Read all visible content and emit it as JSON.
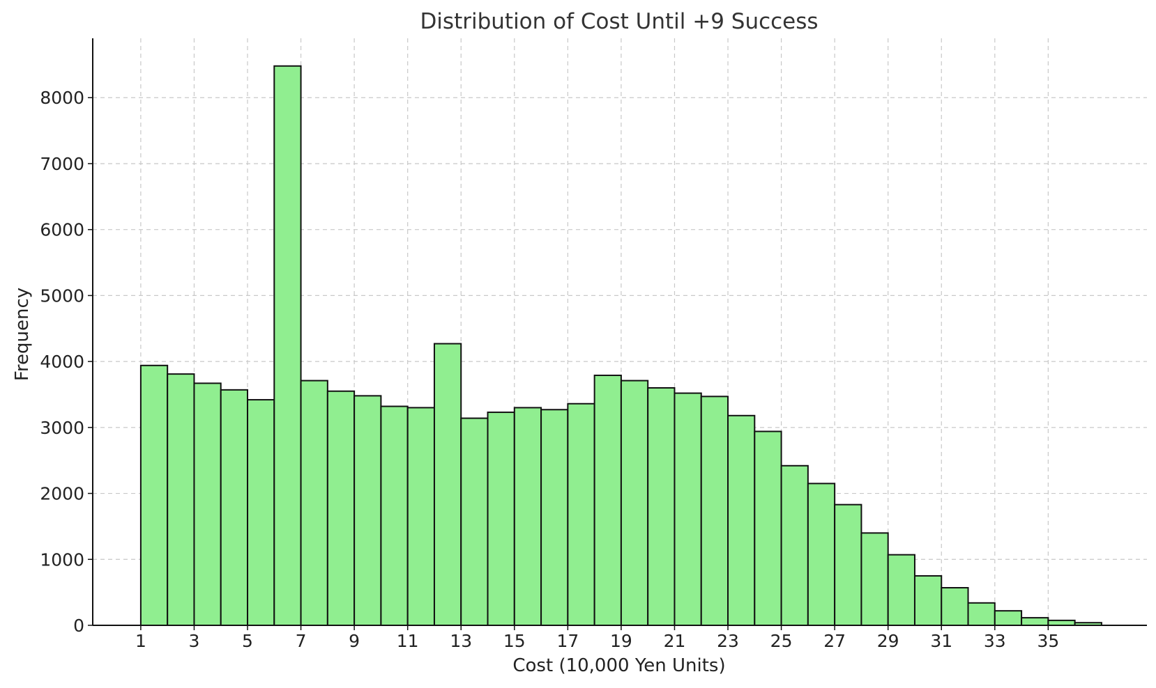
{
  "chart_data": {
    "type": "bar",
    "title": "Distribution of Cost Until +9 Success",
    "xlabel": "Cost (10,000 Yen Units)",
    "ylabel": "Frequency",
    "bin_width": 1,
    "bin_starts": [
      1,
      2,
      3,
      4,
      5,
      6,
      7,
      8,
      9,
      10,
      11,
      12,
      13,
      14,
      15,
      16,
      17,
      18,
      19,
      20,
      21,
      22,
      23,
      24,
      25,
      26,
      27,
      28,
      29,
      30,
      31,
      32,
      33,
      34,
      35,
      36
    ],
    "values": [
      3940,
      3810,
      3670,
      3570,
      3420,
      8480,
      3710,
      3550,
      3480,
      3320,
      3300,
      4270,
      3140,
      3230,
      3300,
      3270,
      3360,
      3790,
      3710,
      3600,
      3520,
      3470,
      3180,
      2940,
      2420,
      2150,
      1830,
      1400,
      1070,
      750,
      570,
      340,
      220,
      115,
      75,
      40
    ],
    "xlim": [
      -0.8,
      38.7
    ],
    "ylim": [
      0,
      8900
    ],
    "x_ticks": [
      1,
      3,
      5,
      7,
      9,
      11,
      13,
      15,
      17,
      19,
      21,
      23,
      25,
      27,
      29,
      31,
      33,
      35
    ],
    "y_ticks": [
      0,
      1000,
      2000,
      3000,
      4000,
      5000,
      6000,
      7000,
      8000
    ],
    "grid": true,
    "colors": {
      "bar_fill": "#90ee90",
      "bar_edge": "#111111"
    }
  }
}
